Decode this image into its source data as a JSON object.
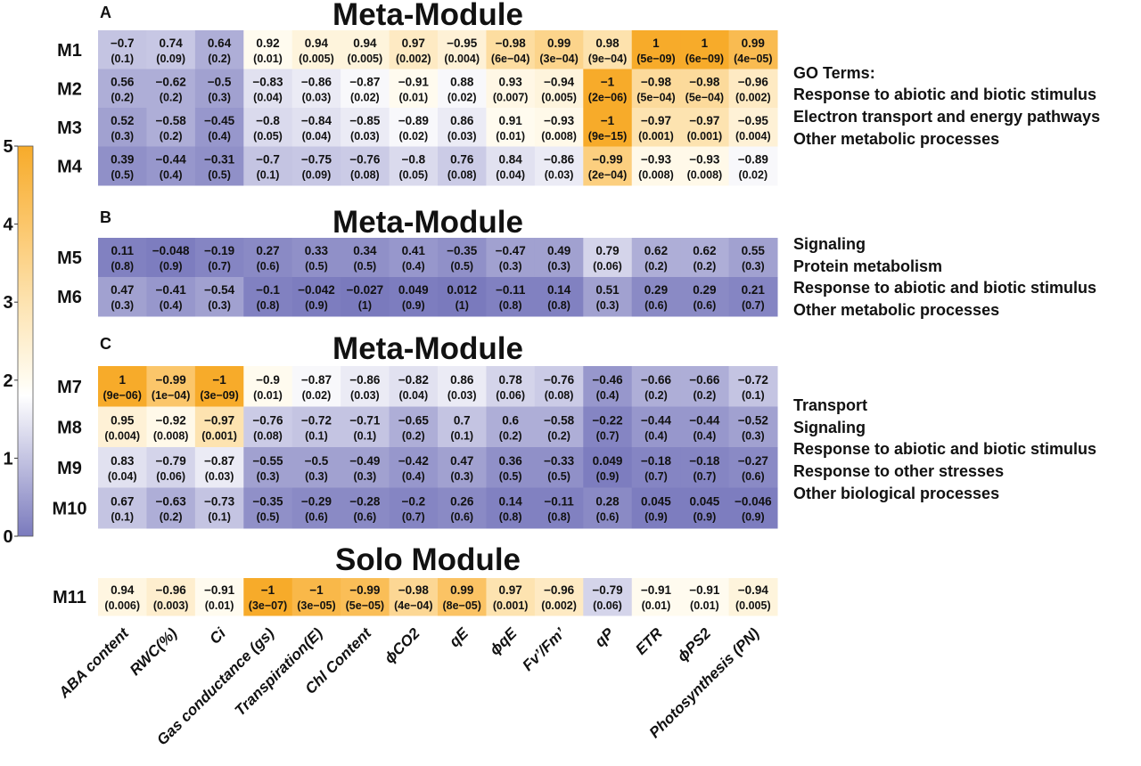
{
  "chart_data": {
    "type": "heatmap",
    "columns": [
      "ABA content",
      "RWC(%)",
      "Ci",
      "Gas conductance (gs)",
      "Transpiration(E)",
      "Chl Content",
      "ϕCO2",
      "qE",
      "ϕqE",
      "Fv’/Fm’",
      "qP",
      "ETR",
      "ϕPS2",
      "Photosynthesis (PN)"
    ],
    "color_scale": {
      "metric": "-log10(p)",
      "range": [
        0,
        5
      ],
      "ticks": [
        "0",
        "1",
        "2",
        "3",
        "4",
        "5"
      ],
      "low_color": "#7a7abd",
      "mid_color": "#ffffff",
      "high_color": "#f7ab2a"
    },
    "panels": [
      {
        "letter": "A",
        "title": "Meta-Module",
        "go_header": "GO Terms:",
        "go_terms": [
          "Response to abiotic and biotic stimulus",
          "Electron transport and energy pathways",
          "Other metabolic processes"
        ],
        "rows": [
          {
            "label": "M1",
            "r": [
              "−0.7",
              "0.74",
              "0.64",
              "0.92",
              "0.94",
              "0.94",
              "0.97",
              "−0.95",
              "−0.98",
              "0.99",
              "0.98",
              "1",
              "1",
              "0.99"
            ],
            "p": [
              "0.1",
              "0.09",
              "0.2",
              "0.01",
              "0.005",
              "0.005",
              "0.002",
              "0.004",
              "6e−04",
              "3e−04",
              "9e−04",
              "5e−09",
              "6e−09",
              "4e−05"
            ]
          },
          {
            "label": "M2",
            "r": [
              "0.56",
              "−0.62",
              "−0.5",
              "−0.83",
              "−0.86",
              "−0.87",
              "−0.91",
              "0.88",
              "0.93",
              "−0.94",
              "−1",
              "−0.98",
              "−0.98",
              "−0.96"
            ],
            "p": [
              "0.2",
              "0.2",
              "0.3",
              "0.04",
              "0.03",
              "0.02",
              "0.01",
              "0.02",
              "0.007",
              "0.005",
              "2e−06",
              "5e−04",
              "5e−04",
              "0.002"
            ]
          },
          {
            "label": "M3",
            "r": [
              "0.52",
              "−0.58",
              "−0.45",
              "−0.8",
              "−0.84",
              "−0.85",
              "−0.89",
              "0.86",
              "0.91",
              "−0.93",
              "−1",
              "−0.97",
              "−0.97",
              "−0.95"
            ],
            "p": [
              "0.3",
              "0.2",
              "0.4",
              "0.05",
              "0.04",
              "0.03",
              "0.02",
              "0.03",
              "0.01",
              "0.008",
              "9e−15",
              "0.001",
              "0.001",
              "0.004"
            ]
          },
          {
            "label": "M4",
            "r": [
              "0.39",
              "−0.44",
              "−0.31",
              "−0.7",
              "−0.75",
              "−0.76",
              "−0.8",
              "0.76",
              "0.84",
              "−0.86",
              "−0.99",
              "−0.93",
              "−0.93",
              "−0.89"
            ],
            "p": [
              "0.5",
              "0.4",
              "0.5",
              "0.1",
              "0.09",
              "0.08",
              "0.05",
              "0.08",
              "0.04",
              "0.03",
              "2e−04",
              "0.008",
              "0.008",
              "0.02"
            ]
          }
        ]
      },
      {
        "letter": "B",
        "title": "Meta-Module",
        "go_terms": [
          "Signaling",
          "Protein metabolism",
          "Response to abiotic and biotic stimulus",
          "Other metabolic processes"
        ],
        "rows": [
          {
            "label": "M5",
            "r": [
              "0.11",
              "−0.048",
              "−0.19",
              "0.27",
              "0.33",
              "0.34",
              "0.41",
              "−0.35",
              "−0.47",
              "0.49",
              "0.79",
              "0.62",
              "0.62",
              "0.55"
            ],
            "p": [
              "0.8",
              "0.9",
              "0.7",
              "0.6",
              "0.5",
              "0.5",
              "0.4",
              "0.5",
              "0.3",
              "0.3",
              "0.06",
              "0.2",
              "0.2",
              "0.3"
            ]
          },
          {
            "label": "M6",
            "r": [
              "0.47",
              "−0.41",
              "−0.54",
              "−0.1",
              "−0.042",
              "−0.027",
              "0.049",
              "0.012",
              "−0.11",
              "0.14",
              "0.51",
              "0.29",
              "0.29",
              "0.21"
            ],
            "p": [
              "0.3",
              "0.4",
              "0.3",
              "0.8",
              "0.9",
              "1",
              "0.9",
              "1",
              "0.8",
              "0.8",
              "0.3",
              "0.6",
              "0.6",
              "0.7"
            ]
          }
        ]
      },
      {
        "letter": "C",
        "title": "Meta-Module",
        "go_terms": [
          "Transport",
          "Signaling",
          "Response to abiotic and biotic stimulus",
          "Response to other stresses",
          "Other biological processes"
        ],
        "rows": [
          {
            "label": "M7",
            "r": [
              "1",
              "−0.99",
              "−1",
              "−0.9",
              "−0.87",
              "−0.86",
              "−0.82",
              "0.86",
              "0.78",
              "−0.76",
              "−0.46",
              "−0.66",
              "−0.66",
              "−0.72"
            ],
            "p": [
              "9e−06",
              "1e−04",
              "3e−09",
              "0.01",
              "0.02",
              "0.03",
              "0.04",
              "0.03",
              "0.06",
              "0.08",
              "0.4",
              "0.2",
              "0.2",
              "0.1"
            ]
          },
          {
            "label": "M8",
            "r": [
              "0.95",
              "−0.92",
              "−0.97",
              "−0.76",
              "−0.72",
              "−0.71",
              "−0.65",
              "0.7",
              "0.6",
              "−0.58",
              "−0.22",
              "−0.44",
              "−0.44",
              "−0.52"
            ],
            "p": [
              "0.004",
              "0.008",
              "0.001",
              "0.08",
              "0.1",
              "0.1",
              "0.2",
              "0.1",
              "0.2",
              "0.2",
              "0.7",
              "0.4",
              "0.4",
              "0.3"
            ]
          },
          {
            "label": "M9",
            "r": [
              "0.83",
              "−0.79",
              "−0.87",
              "−0.55",
              "−0.5",
              "−0.49",
              "−0.42",
              "0.47",
              "0.36",
              "−0.33",
              "0.049",
              "−0.18",
              "−0.18",
              "−0.27"
            ],
            "p": [
              "0.04",
              "0.06",
              "0.03",
              "0.3",
              "0.3",
              "0.3",
              "0.4",
              "0.3",
              "0.5",
              "0.5",
              "0.9",
              "0.7",
              "0.7",
              "0.6"
            ]
          },
          {
            "label": "M10",
            "r": [
              "0.67",
              "−0.63",
              "−0.73",
              "−0.35",
              "−0.29",
              "−0.28",
              "−0.2",
              "0.26",
              "0.14",
              "−0.11",
              "0.28",
              "0.045",
              "0.045",
              "−0.046"
            ],
            "p": [
              "0.1",
              "0.2",
              "0.1",
              "0.5",
              "0.6",
              "0.6",
              "0.7",
              "0.6",
              "0.8",
              "0.8",
              "0.6",
              "0.9",
              "0.9",
              "0.9"
            ]
          }
        ]
      },
      {
        "letter": "",
        "title": "Solo Module",
        "go_terms": [],
        "rows": [
          {
            "label": "M11",
            "r": [
              "0.94",
              "−0.96",
              "−0.91",
              "−1",
              "−1",
              "−0.99",
              "−0.98",
              "0.99",
              "0.97",
              "−0.96",
              "−0.79",
              "−0.91",
              "−0.91",
              "−0.94"
            ],
            "p": [
              "0.006",
              "0.003",
              "0.01",
              "3e−07",
              "3e−05",
              "5e−05",
              "4e−04",
              "8e−05",
              "0.001",
              "0.002",
              "0.06",
              "0.01",
              "0.01",
              "0.005"
            ]
          }
        ]
      }
    ]
  }
}
